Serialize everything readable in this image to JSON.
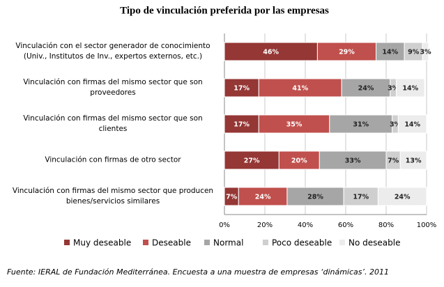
{
  "chart_data": {
    "type": "stacked-barh",
    "title": "Tipo de vinculación preferida por las empresas",
    "categories": [
      "Vinculación con el sector generador de conocimiento (Univ., Institutos de Inv., expertos externos, etc.)",
      "Vinculación con firmas del mismo sector que son proveedores",
      "Vinculación con firmas del mismo sector que son clientes",
      "Vinculación con firmas de otro sector",
      "Vinculación con firmas del mismo sector que producen bienes/servicios similares"
    ],
    "series": [
      {
        "name": "Muy deseable",
        "color": "#953735",
        "values": [
          46,
          17,
          17,
          27,
          7
        ],
        "value_labels": [
          "46%",
          "17%",
          "17%",
          "27%",
          "7%"
        ]
      },
      {
        "name": "Deseable",
        "color": "#c0504d",
        "values": [
          29,
          41,
          35,
          20,
          24
        ],
        "value_labels": [
          "29%",
          "41%",
          "35%",
          "20%",
          "24%"
        ]
      },
      {
        "name": "Normal",
        "color": "#a6a6a6",
        "values": [
          14,
          24,
          31,
          33,
          28
        ],
        "value_labels": [
          "14%",
          "24%",
          "31%",
          "33%",
          "28%"
        ]
      },
      {
        "name": "Poco deseable",
        "color": "#cfcfcf",
        "values": [
          9,
          3,
          3,
          7,
          17
        ],
        "value_labels": [
          "9%",
          "3%",
          "3%",
          "7%",
          "17%"
        ]
      },
      {
        "name": "No deseable",
        "color": "#ececec",
        "values": [
          3,
          14,
          14,
          13,
          24
        ],
        "value_labels": [
          "3%",
          "14%",
          "14%",
          "13%",
          "24%"
        ]
      }
    ],
    "xlim": [
      0,
      100
    ],
    "xticks": [
      {
        "value": 0,
        "label": "0%"
      },
      {
        "value": 20,
        "label": "20%"
      },
      {
        "value": 40,
        "label": "40%"
      },
      {
        "value": 60,
        "label": "60%"
      },
      {
        "value": 80,
        "label": "80%"
      },
      {
        "value": 100,
        "label": "100%"
      }
    ],
    "grid": true,
    "legend": "bottom",
    "source": "Fuente: IERAL de Fundación Mediterránea. Encuesta a una muestra de empresas ‘dinámicas’. 2011"
  }
}
